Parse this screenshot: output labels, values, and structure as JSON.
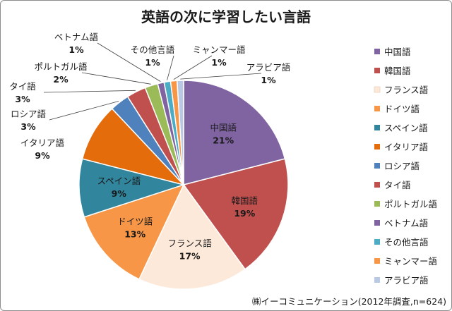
{
  "chart_data": {
    "type": "pie",
    "title": "英語の次に学習したい言語",
    "legend_position": "right",
    "slices": [
      {
        "name": "中国語",
        "value": 21,
        "label": "21%",
        "color": "#8064a2"
      },
      {
        "name": "韓国語",
        "value": 19,
        "label": "19%",
        "color": "#c0504d"
      },
      {
        "name": "フランス語",
        "value": 17,
        "label": "17%",
        "color": "#fde9d9"
      },
      {
        "name": "ドイツ語",
        "value": 13,
        "label": "13%",
        "color": "#f79646"
      },
      {
        "name": "スペイン語",
        "value": 9,
        "label": "9%",
        "color": "#31859c"
      },
      {
        "name": "イタリア語",
        "value": 9,
        "label": "9%",
        "color": "#e46c0a"
      },
      {
        "name": "ロシア語",
        "value": 3,
        "label": "3%",
        "color": "#4f81bd"
      },
      {
        "name": "タイ語",
        "value": 3,
        "label": "3%",
        "color": "#c0504d"
      },
      {
        "name": "ポルトガル語",
        "value": 2,
        "label": "2%",
        "color": "#9bbb59"
      },
      {
        "name": "ベトナム語",
        "value": 1,
        "label": "1%",
        "color": "#8064a2"
      },
      {
        "name": "その他言語",
        "value": 1,
        "label": "1%",
        "color": "#4bacc6"
      },
      {
        "name": "ミャンマー語",
        "value": 1,
        "label": "1%",
        "color": "#f79646"
      },
      {
        "name": "アラビア語",
        "value": 1,
        "label": "1%",
        "color": "#b9c9e3"
      }
    ],
    "source": "㈱イーコミュニケーション(2012年調査,n=624)"
  }
}
